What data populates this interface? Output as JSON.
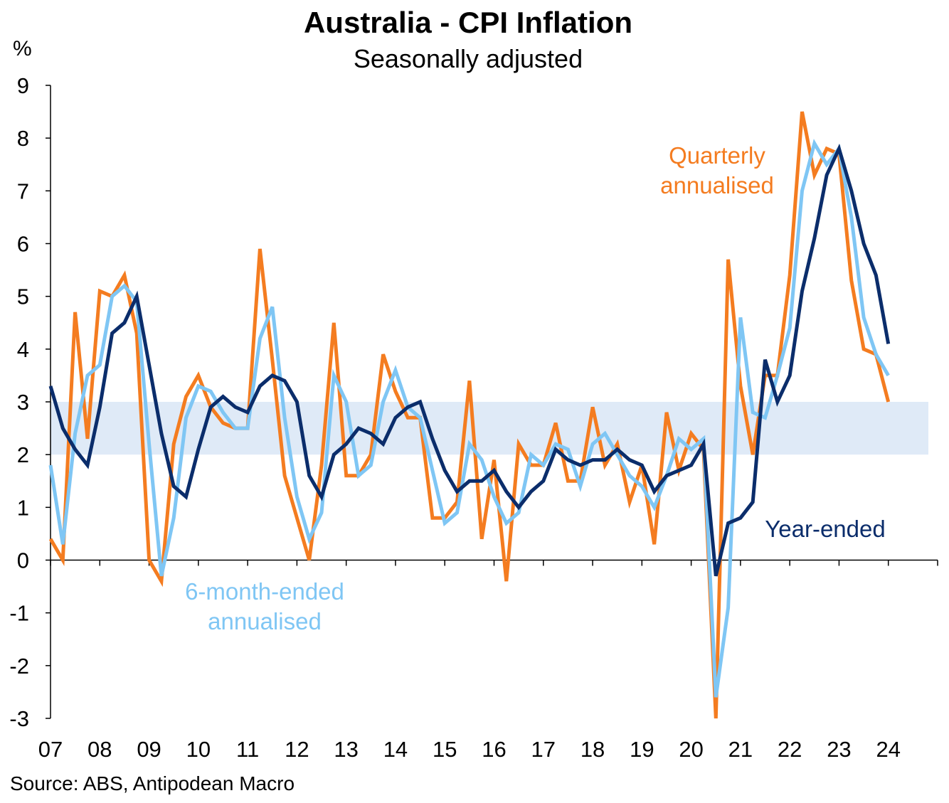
{
  "chart_data": {
    "type": "line",
    "title": "Australia  - CPI Inflation",
    "subtitle": "Seasonally adjusted",
    "ylabel": "%",
    "ylim": [
      -3,
      9
    ],
    "yticks": [
      9,
      8,
      7,
      6,
      5,
      4,
      3,
      2,
      1,
      0,
      -1,
      -2,
      -3
    ],
    "xlim": [
      2007.0,
      2025.0
    ],
    "xtick_labels": [
      "07",
      "08",
      "09",
      "10",
      "11",
      "12",
      "13",
      "14",
      "15",
      "16",
      "17",
      "18",
      "19",
      "20",
      "21",
      "22",
      "23",
      "24"
    ],
    "target_band": {
      "low": 2,
      "high": 3,
      "color": "#dfeaf7"
    },
    "source": "Source: ABS, Antipodean  Macro",
    "x_quarters_start": 2007.0,
    "x_quarter_step": 0.25,
    "series": [
      {
        "name": "Quarterly annualised",
        "label_lines": [
          "Quarterly",
          "annualised"
        ],
        "color": "#f47c20",
        "values": [
          0.4,
          0.0,
          4.7,
          2.3,
          5.1,
          5.0,
          5.4,
          4.3,
          0.0,
          -0.4,
          2.2,
          3.1,
          3.5,
          2.9,
          2.6,
          2.5,
          2.5,
          5.9,
          3.8,
          1.6,
          0.8,
          0.0,
          1.8,
          4.5,
          1.6,
          1.6,
          2.0,
          3.9,
          3.2,
          2.7,
          2.7,
          0.8,
          0.8,
          1.1,
          3.4,
          0.4,
          1.9,
          -0.4,
          2.2,
          1.8,
          1.8,
          2.6,
          1.5,
          1.5,
          2.9,
          1.8,
          2.2,
          1.1,
          1.8,
          0.3,
          2.8,
          1.7,
          2.4,
          2.1,
          -3.2,
          5.7,
          3.3,
          2.0,
          3.5,
          3.5,
          5.4,
          8.5,
          7.3,
          7.8,
          7.7,
          5.3,
          4.0,
          3.9,
          3.0
        ]
      },
      {
        "name": "6-month-ended annualised",
        "label_lines": [
          "6-month-ended",
          "annualised"
        ],
        "color": "#7fc6f4",
        "values": [
          1.8,
          0.3,
          2.4,
          3.5,
          3.7,
          5.0,
          5.2,
          4.9,
          2.2,
          -0.3,
          0.8,
          2.7,
          3.3,
          3.2,
          2.8,
          2.5,
          2.5,
          4.2,
          4.8,
          2.7,
          1.2,
          0.4,
          0.9,
          3.5,
          3.0,
          1.6,
          1.8,
          3.0,
          3.6,
          2.9,
          2.7,
          1.7,
          0.7,
          0.9,
          2.2,
          1.9,
          1.2,
          0.7,
          0.9,
          2.0,
          1.8,
          2.2,
          2.1,
          1.4,
          2.2,
          2.4,
          2.0,
          1.6,
          1.4,
          1.0,
          1.6,
          2.3,
          2.1,
          2.3,
          -2.6,
          -0.9,
          4.6,
          2.8,
          2.7,
          3.5,
          4.4,
          7.0,
          7.9,
          7.5,
          7.8,
          6.5,
          4.6,
          3.9,
          3.5
        ]
      },
      {
        "name": "Year-ended",
        "label_lines": [
          "Year-ended"
        ],
        "color": "#0b2d6b",
        "values": [
          3.3,
          2.5,
          2.1,
          1.8,
          2.9,
          4.3,
          4.5,
          5.0,
          3.7,
          2.4,
          1.4,
          1.2,
          2.1,
          2.9,
          3.1,
          2.9,
          2.8,
          3.3,
          3.5,
          3.4,
          3.0,
          1.6,
          1.2,
          2.0,
          2.2,
          2.5,
          2.4,
          2.2,
          2.7,
          2.9,
          3.0,
          2.3,
          1.7,
          1.3,
          1.5,
          1.5,
          1.7,
          1.3,
          1.0,
          1.3,
          1.5,
          2.1,
          1.9,
          1.8,
          1.9,
          1.9,
          2.1,
          1.9,
          1.8,
          1.3,
          1.6,
          1.7,
          1.8,
          2.2,
          -0.3,
          0.7,
          0.8,
          1.1,
          3.8,
          3.0,
          3.5,
          5.1,
          6.1,
          7.3,
          7.8,
          7.0,
          6.0,
          5.4,
          4.1
        ]
      }
    ]
  }
}
